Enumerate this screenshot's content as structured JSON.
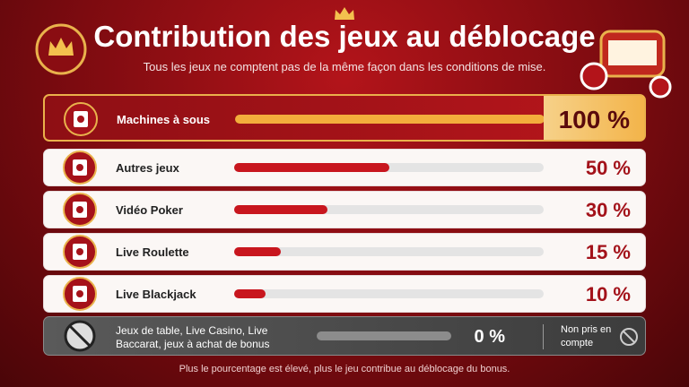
{
  "chart_data": {
    "type": "bar",
    "orientation": "horizontal",
    "title": "Contribution des jeux au déblocage",
    "subtitle": "Tous les jeux ne comptent pas de la même façon dans les conditions de mise.",
    "categories": [
      "Machines à sous",
      "Autres jeux",
      "Vidéo Poker",
      "Live Roulette",
      "Live Blackjack",
      "Jeux de table, Live Casino, Live Baccarat, jeux à achat de bonus"
    ],
    "values": [
      100,
      50,
      30,
      15,
      10,
      0
    ],
    "value_labels": [
      "100 %",
      "50 %",
      "30 %",
      "15 %",
      "10 %",
      "0 %"
    ],
    "colors": [
      "#f3ad3c",
      "#c8161e",
      "#c8161e",
      "#c8161e",
      "#c8161e",
      "#9a9a9a"
    ],
    "xlim": [
      0,
      100
    ],
    "annotation": "Non pris en compte",
    "footnote": "Plus le pourcentage est élevé, plus le jeu contribue au déblocage du bonus."
  }
}
